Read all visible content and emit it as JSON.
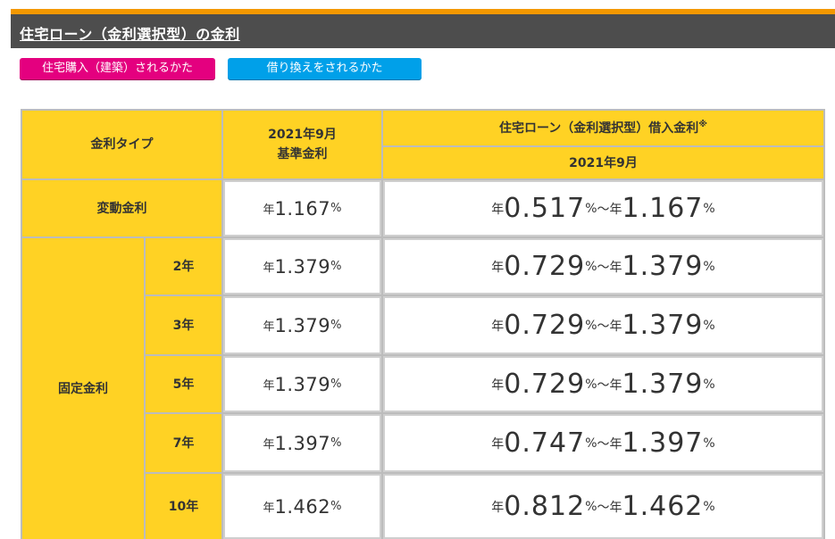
{
  "title": "住宅ローン（金利選択型）の金利",
  "buttons": {
    "purchase": "住宅購入（建築）されるかた",
    "refinance": "借り換えをされるかた"
  },
  "table": {
    "col_type": "金利タイプ",
    "col_base_line1": "2021年9月",
    "col_base_line2": "基準金利",
    "col_rate": "住宅ローン（金利選択型）借入金利",
    "col_rate_mark": "※",
    "col_rate_sub": "2021年9月",
    "prefix": "年",
    "unit": "%",
    "tilde": "～",
    "fixed_label": "固定金利",
    "rows": [
      {
        "label": "変動金利",
        "base": "1.167",
        "min": "0.517",
        "max": "1.167"
      },
      {
        "label": "2年",
        "base": "1.379",
        "min": "0.729",
        "max": "1.379"
      },
      {
        "label": "3年",
        "base": "1.379",
        "min": "0.729",
        "max": "1.379"
      },
      {
        "label": "5年",
        "base": "1.379",
        "min": "0.729",
        "max": "1.379"
      },
      {
        "label": "7年",
        "base": "1.397",
        "min": "0.747",
        "max": "1.397"
      },
      {
        "label": "10年",
        "base": "1.462",
        "min": "0.812",
        "max": "1.462"
      }
    ]
  },
  "colors": {
    "accent": "#f39800",
    "header_bg": "#ffd224",
    "title_bg": "#4d4d4d",
    "pink": "#e4007f",
    "blue": "#00a0e9"
  }
}
